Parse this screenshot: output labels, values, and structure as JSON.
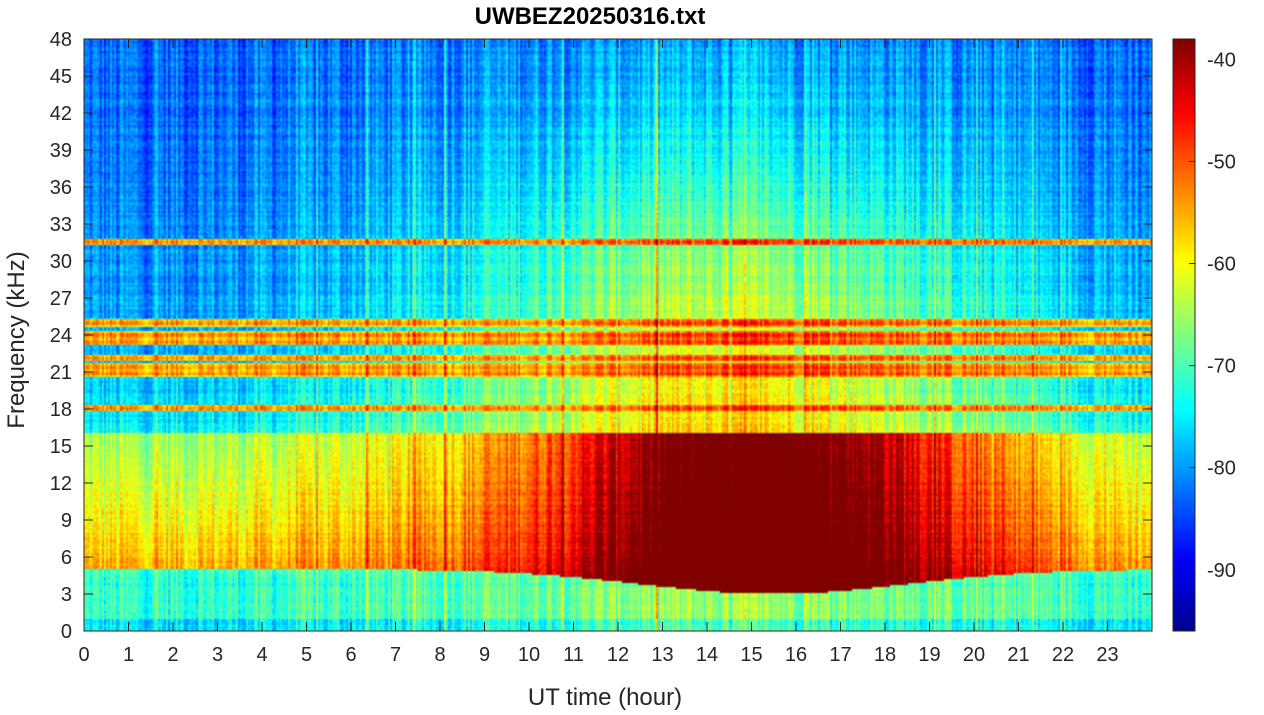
{
  "chart_data": {
    "type": "heatmap",
    "title": "UWBEZ20250316.txt",
    "xlabel": "UT time (hour)",
    "ylabel": "Frequency (kHz)",
    "xlim": [
      0,
      24
    ],
    "ylim": [
      0,
      48
    ],
    "x_ticks": [
      0,
      1,
      2,
      3,
      4,
      5,
      6,
      7,
      8,
      9,
      10,
      11,
      12,
      13,
      14,
      15,
      16,
      17,
      18,
      19,
      20,
      21,
      22,
      23
    ],
    "y_ticks": [
      0,
      3,
      6,
      9,
      12,
      15,
      18,
      21,
      24,
      27,
      30,
      33,
      36,
      39,
      42,
      45,
      48
    ],
    "colorbar": {
      "colormap": "jet",
      "range": [
        -96,
        -38
      ],
      "ticks": [
        -90,
        -80,
        -70,
        -60,
        -50,
        -40
      ]
    },
    "features": {
      "noon_max_db": -40,
      "night_floor_db": -84,
      "lf_band_khz": [
        4,
        15
      ],
      "transmitter_lines_khz": [
        18.1,
        20.9,
        21.4,
        22.1,
        23.4,
        24.0,
        25.0,
        31.5
      ]
    },
    "grid": false
  }
}
